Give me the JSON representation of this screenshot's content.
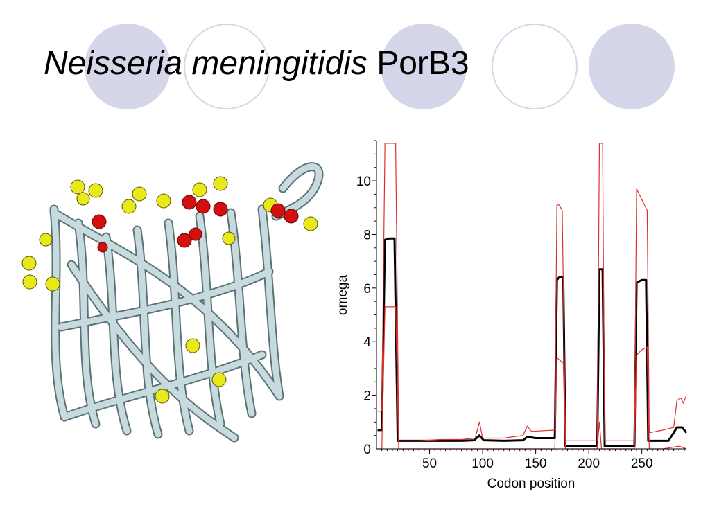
{
  "slide": {
    "title_italic": "Neisseria meningitidis",
    "title_regular": "PorB3"
  },
  "figure": {
    "icon": "protein-beta-barrel-ribbon-structure",
    "colors": {
      "ribbon": "#c7dadd",
      "ribbon_edge": "#5b7377",
      "site_yellow": "#e8e81a",
      "site_red": "#d40f0f"
    }
  },
  "chart_data": {
    "type": "line",
    "xlabel": "Codon position",
    "ylabel": "omega",
    "xlim": [
      0,
      292
    ],
    "ylim": [
      0,
      11.5
    ],
    "xticks": [
      50,
      100,
      150,
      200,
      250
    ],
    "yticks": [
      0,
      2,
      4,
      6,
      8,
      10
    ],
    "grid": false,
    "series": [
      {
        "color": "#000000",
        "points": [
          [
            1,
            0.7
          ],
          [
            5,
            0.7
          ],
          [
            8,
            7.8
          ],
          [
            12,
            7.85
          ],
          [
            17,
            7.85
          ],
          [
            20,
            0.3
          ],
          [
            40,
            0.3
          ],
          [
            60,
            0.3
          ],
          [
            80,
            0.3
          ],
          [
            92,
            0.32
          ],
          [
            97,
            0.5
          ],
          [
            101,
            0.32
          ],
          [
            120,
            0.3
          ],
          [
            138,
            0.32
          ],
          [
            142,
            0.45
          ],
          [
            150,
            0.4
          ],
          [
            163,
            0.4
          ],
          [
            168,
            0.4
          ],
          [
            170,
            6.3
          ],
          [
            172,
            6.4
          ],
          [
            176,
            6.4
          ],
          [
            178,
            0.1
          ],
          [
            195,
            0.1
          ],
          [
            208,
            0.1
          ],
          [
            210,
            6.7
          ],
          [
            213,
            6.7
          ],
          [
            215,
            0.1
          ],
          [
            230,
            0.1
          ],
          [
            243,
            0.1
          ],
          [
            245,
            6.2
          ],
          [
            250,
            6.3
          ],
          [
            254,
            6.3
          ],
          [
            256,
            0.3
          ],
          [
            275,
            0.3
          ],
          [
            280,
            0.6
          ],
          [
            283,
            0.8
          ],
          [
            288,
            0.8
          ],
          [
            292,
            0.6
          ]
        ]
      },
      {
        "color": "#e0302e",
        "points": [
          [
            1,
            1.4
          ],
          [
            5,
            1.4
          ],
          [
            8,
            11.4
          ],
          [
            18,
            11.4
          ],
          [
            21,
            0.3
          ],
          [
            40,
            0.3
          ],
          [
            60,
            0.35
          ],
          [
            80,
            0.35
          ],
          [
            93,
            0.4
          ],
          [
            97,
            1.0
          ],
          [
            100,
            0.4
          ],
          [
            120,
            0.4
          ],
          [
            138,
            0.5
          ],
          [
            142,
            0.85
          ],
          [
            146,
            0.65
          ],
          [
            168,
            0.7
          ],
          [
            170,
            9.1
          ],
          [
            172,
            9.1
          ],
          [
            175,
            8.9
          ],
          [
            178,
            0.3
          ],
          [
            195,
            0.3
          ],
          [
            208,
            0.3
          ],
          [
            210,
            11.4
          ],
          [
            213,
            11.4
          ],
          [
            215,
            0.3
          ],
          [
            230,
            0.3
          ],
          [
            243,
            0.3
          ],
          [
            245,
            9.7
          ],
          [
            250,
            9.3
          ],
          [
            255,
            8.9
          ],
          [
            257,
            0.6
          ],
          [
            270,
            0.7
          ],
          [
            280,
            0.8
          ],
          [
            283,
            1.8
          ],
          [
            287,
            1.9
          ],
          [
            289,
            1.7
          ],
          [
            292,
            2.0
          ]
        ]
      },
      {
        "color": "#e0302e",
        "points": [
          [
            1,
            0.0
          ],
          [
            5,
            0.0
          ],
          [
            8,
            5.3
          ],
          [
            12,
            5.3
          ],
          [
            18,
            5.3
          ],
          [
            21,
            0.0
          ],
          [
            40,
            0.0
          ],
          [
            60,
            0.0
          ],
          [
            80,
            0.0
          ],
          [
            95,
            0.0
          ],
          [
            100,
            0.0
          ],
          [
            140,
            0.0
          ],
          [
            168,
            0.0
          ],
          [
            170,
            3.4
          ],
          [
            173,
            3.3
          ],
          [
            176,
            3.2
          ],
          [
            178,
            0.0
          ],
          [
            208,
            0.0
          ],
          [
            210,
            1.0
          ],
          [
            212,
            0.0
          ],
          [
            230,
            0.0
          ],
          [
            243,
            0.0
          ],
          [
            245,
            3.5
          ],
          [
            250,
            3.7
          ],
          [
            255,
            3.8
          ],
          [
            257,
            0.0
          ],
          [
            270,
            0.0
          ],
          [
            285,
            0.1
          ],
          [
            292,
            0.0
          ]
        ]
      }
    ]
  }
}
